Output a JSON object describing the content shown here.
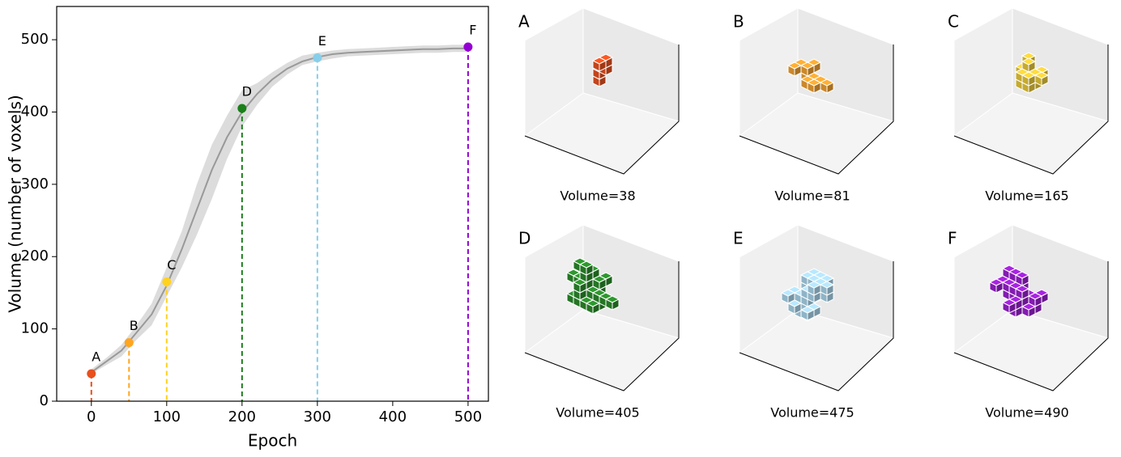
{
  "chart_data": {
    "type": "line",
    "xlabel": "Epoch",
    "ylabel": "Volume (number of voxels)",
    "xlim": [
      -46,
      527
    ],
    "ylim": [
      0,
      546
    ],
    "xticks": [
      0,
      100,
      200,
      300,
      400,
      500
    ],
    "yticks": [
      0,
      100,
      200,
      300,
      400,
      500
    ],
    "x": [
      0,
      20,
      40,
      60,
      80,
      100,
      120,
      140,
      160,
      180,
      200,
      220,
      240,
      260,
      280,
      300,
      320,
      340,
      360,
      380,
      400,
      420,
      440,
      460,
      480,
      500
    ],
    "series": [
      {
        "color": "#999999",
        "values": [
          40,
          55,
          70,
          95,
          120,
          160,
          210,
          265,
          320,
          365,
          400,
          425,
          445,
          460,
          470,
          476,
          480,
          482,
          483,
          484,
          485,
          486,
          487,
          487,
          488,
          488
        ]
      }
    ],
    "band": {
      "color": "#dcdcdc",
      "lower": [
        38,
        50,
        62,
        85,
        105,
        145,
        185,
        230,
        280,
        335,
        380,
        410,
        435,
        452,
        465,
        470,
        474,
        477,
        478,
        479,
        480,
        481,
        482,
        482,
        483,
        483
      ],
      "upper": [
        44,
        60,
        78,
        105,
        135,
        185,
        235,
        300,
        355,
        395,
        430,
        440,
        455,
        468,
        478,
        482,
        485,
        487,
        488,
        489,
        490,
        491,
        492,
        492,
        493,
        493
      ]
    },
    "points": {
      "x": [
        0,
        50,
        100,
        200,
        300,
        500
      ],
      "values": [
        38,
        81,
        165,
        405,
        475,
        490
      ],
      "labels": [
        "A",
        "B",
        "C",
        "D",
        "E",
        "F"
      ],
      "colors": [
        "#e8501e",
        "#ffa51f",
        "#ffd21f",
        "#1a801a",
        "#87ceeb",
        "#9400d3"
      ]
    }
  },
  "panels": [
    {
      "label": "A",
      "caption": "Volume=38",
      "color": "#e8501e"
    },
    {
      "label": "B",
      "caption": "Volume=81",
      "color": "#f0a030"
    },
    {
      "label": "C",
      "caption": "Volume=165",
      "color": "#e8c83a"
    },
    {
      "label": "D",
      "caption": "Volume=405",
      "color": "#2a8a2a"
    },
    {
      "label": "E",
      "caption": "Volume=475",
      "color": "#a8d4ea"
    },
    {
      "label": "F",
      "caption": "Volume=490",
      "color": "#9a20d0"
    }
  ]
}
